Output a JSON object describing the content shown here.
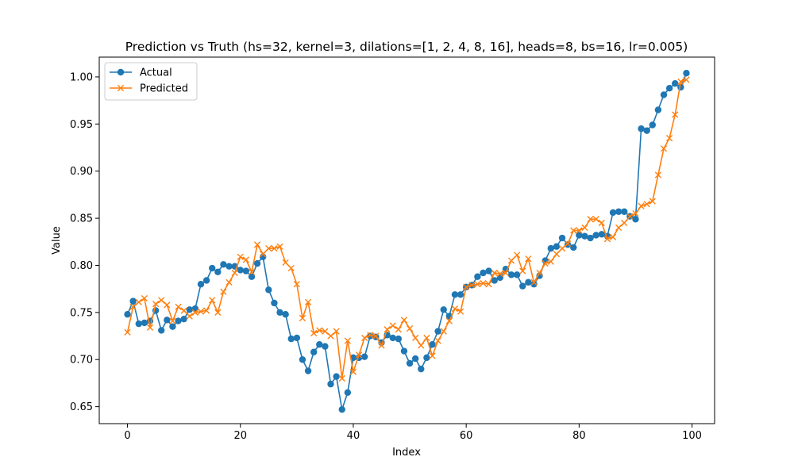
{
  "chart_data": {
    "type": "line",
    "title": "Prediction vs Truth (hs=32, kernel=3, dilations=[1, 2, 4, 8, 16], heads=8, bs=16, lr=0.005)",
    "xlabel": "Index",
    "ylabel": "Value",
    "xlim": [
      -5,
      104
    ],
    "ylim": [
      0.632,
      1.021
    ],
    "x_ticks": [
      0,
      20,
      40,
      60,
      80,
      100
    ],
    "x_tick_labels": [
      "0",
      "20",
      "40",
      "60",
      "80",
      "100"
    ],
    "y_ticks": [
      0.65,
      0.7,
      0.75,
      0.8,
      0.85,
      0.9,
      0.95,
      1.0
    ],
    "y_tick_labels": [
      "0.65",
      "0.70",
      "0.75",
      "0.80",
      "0.85",
      "0.90",
      "0.95",
      "1.00"
    ],
    "grid": false,
    "legend_position": "top-left",
    "x": [
      0,
      1,
      2,
      3,
      4,
      5,
      6,
      7,
      8,
      9,
      10,
      11,
      12,
      13,
      14,
      15,
      16,
      17,
      18,
      19,
      20,
      21,
      22,
      23,
      24,
      25,
      26,
      27,
      28,
      29,
      30,
      31,
      32,
      33,
      34,
      35,
      36,
      37,
      38,
      39,
      40,
      41,
      42,
      43,
      44,
      45,
      46,
      47,
      48,
      49,
      50,
      51,
      52,
      53,
      54,
      55,
      56,
      57,
      58,
      59,
      60,
      61,
      62,
      63,
      64,
      65,
      66,
      67,
      68,
      69,
      70,
      71,
      72,
      73,
      74,
      75,
      76,
      77,
      78,
      79,
      80,
      81,
      82,
      83,
      84,
      85,
      86,
      87,
      88,
      89,
      90,
      91,
      92,
      93,
      94,
      95,
      96,
      97,
      98,
      99
    ],
    "series": [
      {
        "name": "Actual",
        "color": "#1f77b4",
        "marker": "circle",
        "values": [
          0.748,
          0.762,
          0.738,
          0.739,
          0.741,
          0.752,
          0.731,
          0.742,
          0.735,
          0.741,
          0.743,
          0.753,
          0.754,
          0.78,
          0.784,
          0.797,
          0.793,
          0.801,
          0.799,
          0.799,
          0.795,
          0.794,
          0.788,
          0.802,
          0.809,
          0.774,
          0.76,
          0.75,
          0.748,
          0.722,
          0.723,
          0.7,
          0.688,
          0.708,
          0.716,
          0.714,
          0.674,
          0.682,
          0.647,
          0.665,
          0.702,
          0.702,
          0.703,
          0.725,
          0.724,
          0.718,
          0.726,
          0.723,
          0.722,
          0.709,
          0.696,
          0.701,
          0.69,
          0.702,
          0.716,
          0.73,
          0.753,
          0.746,
          0.769,
          0.769,
          0.777,
          0.779,
          0.788,
          0.792,
          0.794,
          0.784,
          0.787,
          0.796,
          0.79,
          0.79,
          0.778,
          0.782,
          0.78,
          0.789,
          0.805,
          0.818,
          0.82,
          0.829,
          0.822,
          0.819,
          0.832,
          0.831,
          0.829,
          0.832,
          0.833,
          0.831,
          0.856,
          0.857,
          0.857,
          0.852,
          0.849,
          0.945,
          0.943,
          0.949,
          0.965,
          0.981,
          0.988,
          0.993,
          0.989,
          1.004
        ]
      },
      {
        "name": "Predicted",
        "color": "#ff7f0e",
        "marker": "x",
        "values": [
          0.729,
          0.756,
          0.761,
          0.765,
          0.734,
          0.759,
          0.763,
          0.758,
          0.741,
          0.756,
          0.752,
          0.746,
          0.75,
          0.751,
          0.752,
          0.763,
          0.75,
          0.772,
          0.782,
          0.792,
          0.809,
          0.806,
          0.793,
          0.822,
          0.812,
          0.818,
          0.818,
          0.82,
          0.803,
          0.797,
          0.78,
          0.744,
          0.761,
          0.728,
          0.731,
          0.73,
          0.725,
          0.73,
          0.68,
          0.72,
          0.687,
          0.705,
          0.723,
          0.726,
          0.725,
          0.715,
          0.732,
          0.736,
          0.732,
          0.742,
          0.733,
          0.723,
          0.715,
          0.723,
          0.704,
          0.72,
          0.73,
          0.741,
          0.754,
          0.751,
          0.777,
          0.779,
          0.78,
          0.781,
          0.78,
          0.792,
          0.791,
          0.792,
          0.805,
          0.811,
          0.794,
          0.807,
          0.782,
          0.792,
          0.802,
          0.804,
          0.812,
          0.818,
          0.823,
          0.837,
          0.837,
          0.84,
          0.849,
          0.849,
          0.845,
          0.828,
          0.83,
          0.84,
          0.845,
          0.852,
          0.855,
          0.863,
          0.865,
          0.868,
          0.896,
          0.924,
          0.935,
          0.96,
          0.995,
          0.997
        ]
      }
    ]
  }
}
